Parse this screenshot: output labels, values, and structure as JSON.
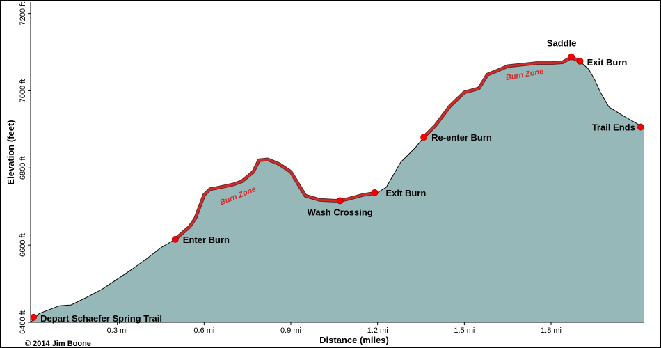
{
  "chart_data": {
    "type": "area",
    "title": "",
    "xlabel": "Distance (miles)",
    "ylabel": "Elevation (feet)",
    "xlim": [
      0.0,
      2.12
    ],
    "ylim": [
      6400,
      7230
    ],
    "x_ticks": [
      {
        "value": 0.3,
        "label": "0.3 mi"
      },
      {
        "value": 0.6,
        "label": "0.6 mi"
      },
      {
        "value": 0.9,
        "label": "0.9 mi"
      },
      {
        "value": 1.2,
        "label": "1.2 mi"
      },
      {
        "value": 1.5,
        "label": "1.5 mi"
      },
      {
        "value": 1.8,
        "label": "1.8 mi"
      }
    ],
    "y_ticks": [
      {
        "value": 6400,
        "label": "6400 ft"
      },
      {
        "value": 6600,
        "label": "6600 ft"
      },
      {
        "value": 6800,
        "label": "6800 ft"
      },
      {
        "value": 7000,
        "label": "7000 ft"
      },
      {
        "value": 7200,
        "label": "7200 ft"
      }
    ],
    "grid": false,
    "colors": {
      "fill": "#97b8b8",
      "line": "#000000",
      "burn": "#d42a2a",
      "marker": "#ff0000"
    },
    "profile": {
      "x": [
        0.0,
        0.03,
        0.1,
        0.14,
        0.2,
        0.25,
        0.3,
        0.35,
        0.4,
        0.45,
        0.5,
        0.55,
        0.57,
        0.6,
        0.62,
        0.65,
        0.7,
        0.73,
        0.77,
        0.79,
        0.82,
        0.86,
        0.9,
        0.95,
        1.0,
        1.05,
        1.07,
        1.1,
        1.15,
        1.2,
        1.23,
        1.28,
        1.33,
        1.36,
        1.4,
        1.45,
        1.5,
        1.55,
        1.58,
        1.61,
        1.65,
        1.7,
        1.75,
        1.8,
        1.84,
        1.87,
        1.9,
        1.93,
        1.95,
        1.97,
        2.0,
        2.05,
        2.12
      ],
      "y": [
        6400,
        6423,
        6443,
        6445,
        6467,
        6487,
        6512,
        6537,
        6564,
        6593,
        6615,
        6648,
        6670,
        6730,
        6745,
        6749,
        6757,
        6765,
        6790,
        6820,
        6822,
        6810,
        6790,
        6728,
        6717,
        6715,
        6715,
        6720,
        6730,
        6736,
        6750,
        6815,
        6852,
        6880,
        6910,
        6960,
        6996,
        7006,
        7042,
        7051,
        7064,
        7068,
        7072,
        7072,
        7074,
        7087,
        7076,
        7056,
        7030,
        6997,
        6958,
        6935,
        6905
      ]
    },
    "burn_zones": [
      {
        "x": [
          0.5,
          0.55,
          0.57,
          0.6,
          0.62,
          0.65,
          0.7,
          0.73,
          0.77,
          0.79,
          0.82,
          0.86,
          0.9,
          0.95,
          1.0,
          1.05,
          1.07,
          1.1,
          1.15,
          1.2
        ],
        "y": [
          6615,
          6648,
          6670,
          6730,
          6745,
          6749,
          6757,
          6765,
          6790,
          6820,
          6822,
          6810,
          6790,
          6728,
          6717,
          6715,
          6715,
          6720,
          6730,
          6736
        ],
        "label": "Burn Zone",
        "label_x": 0.72,
        "label_y": 6722,
        "label_angle": -22
      },
      {
        "x": [
          1.36,
          1.4,
          1.45,
          1.5,
          1.55,
          1.58,
          1.61,
          1.65,
          1.7,
          1.75,
          1.8,
          1.84,
          1.87,
          1.9
        ],
        "y": [
          6880,
          6910,
          6960,
          6996,
          7006,
          7042,
          7051,
          7064,
          7068,
          7072,
          7072,
          7074,
          7087,
          7076
        ],
        "label": "Burn Zone",
        "label_x": 1.71,
        "label_y": 7036,
        "label_angle": -10
      }
    ],
    "points": [
      {
        "name": "Depart Schaefer Spring Trail",
        "x": 0.01,
        "y": 6413,
        "anchor": "start",
        "dx": 10,
        "dy": 6
      },
      {
        "name": "Enter Burn",
        "x": 0.5,
        "y": 6615,
        "anchor": "start",
        "dx": 11,
        "dy": 5
      },
      {
        "name": "Wash Crossing",
        "x": 1.07,
        "y": 6715,
        "anchor": "middle",
        "dx": 0,
        "dy": 21
      },
      {
        "name": "Exit Burn",
        "x": 1.19,
        "y": 6736,
        "anchor": "start",
        "dx": 16,
        "dy": 5
      },
      {
        "name": "Re-enter Burn",
        "x": 1.36,
        "y": 6880,
        "anchor": "start",
        "dx": 11,
        "dy": 5
      },
      {
        "name": "Saddle",
        "x": 1.87,
        "y": 7088,
        "anchor": "middle",
        "dx": -14,
        "dy": -15
      },
      {
        "name": "Exit Burn",
        "x": 1.9,
        "y": 7077,
        "anchor": "start",
        "dx": 10,
        "dy": 6
      },
      {
        "name": "Trail Ends",
        "x": 2.11,
        "y": 6906,
        "anchor": "end",
        "dx": -8,
        "dy": 5
      }
    ]
  },
  "credit": "© 2014 Jim Boone"
}
